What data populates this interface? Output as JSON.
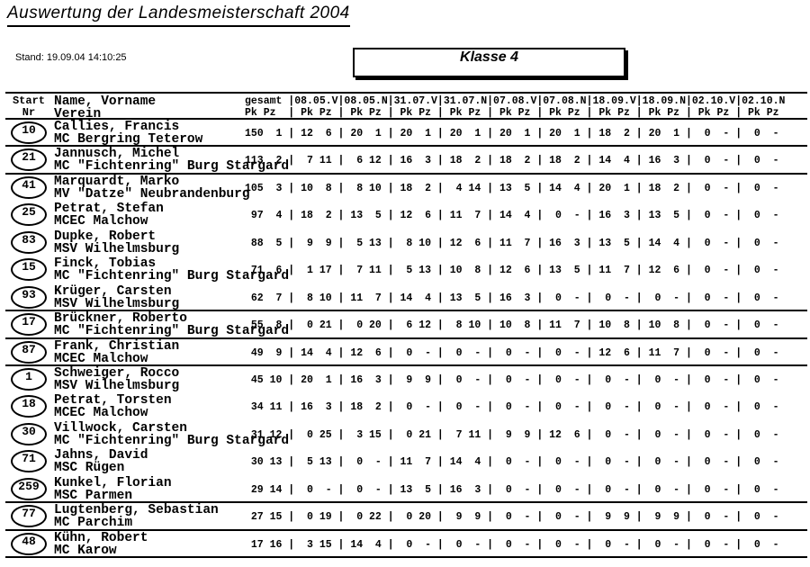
{
  "page": {
    "title": "Auswertung der Landesmeisterschaft 2004",
    "stand": "Stand: 19.09.04 14:10:25",
    "klasse": "Klasse 4"
  },
  "table": {
    "header": {
      "start_line1": "Start",
      "start_line2": "Nr",
      "name_line1": "Name, Vorname",
      "name_line2": "Verein",
      "total_label": "gesamt",
      "sub_label": "Pk Pz",
      "dates": [
        "08.05.V",
        "08.05.N",
        "31.07.V",
        "31.07.N",
        "07.08.V",
        "07.08.N",
        "18.09.V",
        "18.09.N",
        "02.10.V",
        "02.10.N"
      ]
    },
    "rows": [
      {
        "nr": "10",
        "name": "Callies, Francis",
        "verein": "MC Bergring Teterow",
        "total": [
          "150",
          "1"
        ],
        "results": [
          [
            "12",
            "6"
          ],
          [
            "20",
            "1"
          ],
          [
            "20",
            "1"
          ],
          [
            "20",
            "1"
          ],
          [
            "20",
            "1"
          ],
          [
            "20",
            "1"
          ],
          [
            "18",
            "2"
          ],
          [
            "20",
            "1"
          ],
          [
            "0",
            "-"
          ],
          [
            "0",
            "-"
          ]
        ],
        "rule_below": true
      },
      {
        "nr": "21",
        "name": "Jannusch, Michel",
        "verein": "MC \"Fichtenring\" Burg Stargard",
        "total": [
          "113",
          "2"
        ],
        "results": [
          [
            "7",
            "11"
          ],
          [
            "6",
            "12"
          ],
          [
            "16",
            "3"
          ],
          [
            "18",
            "2"
          ],
          [
            "18",
            "2"
          ],
          [
            "18",
            "2"
          ],
          [
            "14",
            "4"
          ],
          [
            "16",
            "3"
          ],
          [
            "0",
            "-"
          ],
          [
            "0",
            "-"
          ]
        ],
        "rule_below": true
      },
      {
        "nr": "41",
        "name": "Marquardt, Marko",
        "verein": "MV \"Datze\" Neubrandenburg",
        "total": [
          "105",
          "3"
        ],
        "results": [
          [
            "10",
            "8"
          ],
          [
            "8",
            "10"
          ],
          [
            "18",
            "2"
          ],
          [
            "4",
            "14"
          ],
          [
            "13",
            "5"
          ],
          [
            "14",
            "4"
          ],
          [
            "20",
            "1"
          ],
          [
            "18",
            "2"
          ],
          [
            "0",
            "-"
          ],
          [
            "0",
            "-"
          ]
        ],
        "rule_below": false
      },
      {
        "nr": "25",
        "name": "Petrat, Stefan",
        "verein": "MCEC Malchow",
        "total": [
          "97",
          "4"
        ],
        "results": [
          [
            "18",
            "2"
          ],
          [
            "13",
            "5"
          ],
          [
            "12",
            "6"
          ],
          [
            "11",
            "7"
          ],
          [
            "14",
            "4"
          ],
          [
            "0",
            "-"
          ],
          [
            "16",
            "3"
          ],
          [
            "13",
            "5"
          ],
          [
            "0",
            "-"
          ],
          [
            "0",
            "-"
          ]
        ],
        "rule_below": false
      },
      {
        "nr": "83",
        "name": "Dupke, Robert",
        "verein": "MSV Wilhelmsburg",
        "total": [
          "88",
          "5"
        ],
        "results": [
          [
            "9",
            "9"
          ],
          [
            "5",
            "13"
          ],
          [
            "8",
            "10"
          ],
          [
            "12",
            "6"
          ],
          [
            "11",
            "7"
          ],
          [
            "16",
            "3"
          ],
          [
            "13",
            "5"
          ],
          [
            "14",
            "4"
          ],
          [
            "0",
            "-"
          ],
          [
            "0",
            "-"
          ]
        ],
        "rule_below": false
      },
      {
        "nr": "15",
        "name": "Finck, Tobias",
        "verein": "MC \"Fichtenring\" Burg Stargard",
        "total": [
          "71",
          "6"
        ],
        "results": [
          [
            "1",
            "17"
          ],
          [
            "7",
            "11"
          ],
          [
            "5",
            "13"
          ],
          [
            "10",
            "8"
          ],
          [
            "12",
            "6"
          ],
          [
            "13",
            "5"
          ],
          [
            "11",
            "7"
          ],
          [
            "12",
            "6"
          ],
          [
            "0",
            "-"
          ],
          [
            "0",
            "-"
          ]
        ],
        "rule_below": false
      },
      {
        "nr": "93",
        "name": "Krüger, Carsten",
        "verein": "MSV Wilhelmsburg",
        "total": [
          "62",
          "7"
        ],
        "results": [
          [
            "8",
            "10"
          ],
          [
            "11",
            "7"
          ],
          [
            "14",
            "4"
          ],
          [
            "13",
            "5"
          ],
          [
            "16",
            "3"
          ],
          [
            "0",
            "-"
          ],
          [
            "0",
            "-"
          ],
          [
            "0",
            "-"
          ],
          [
            "0",
            "-"
          ],
          [
            "0",
            "-"
          ]
        ],
        "rule_below": true
      },
      {
        "nr": "17",
        "name": "Brückner, Roberto",
        "verein": "MC \"Fichtenring\" Burg Stargard",
        "total": [
          "55",
          "8"
        ],
        "results": [
          [
            "0",
            "21"
          ],
          [
            "0",
            "20"
          ],
          [
            "6",
            "12"
          ],
          [
            "8",
            "10"
          ],
          [
            "10",
            "8"
          ],
          [
            "11",
            "7"
          ],
          [
            "10",
            "8"
          ],
          [
            "10",
            "8"
          ],
          [
            "0",
            "-"
          ],
          [
            "0",
            "-"
          ]
        ],
        "rule_below": true
      },
      {
        "nr": "87",
        "name": "Frank, Christian",
        "verein": "MCEC Malchow",
        "total": [
          "49",
          "9"
        ],
        "results": [
          [
            "14",
            "4"
          ],
          [
            "12",
            "6"
          ],
          [
            "0",
            "-"
          ],
          [
            "0",
            "-"
          ],
          [
            "0",
            "-"
          ],
          [
            "0",
            "-"
          ],
          [
            "12",
            "6"
          ],
          [
            "11",
            "7"
          ],
          [
            "0",
            "-"
          ],
          [
            "0",
            "-"
          ]
        ],
        "rule_below": true
      },
      {
        "nr": "1",
        "name": "Schweiger, Rocco",
        "verein": "MSV Wilhelmsburg",
        "total": [
          "45",
          "10"
        ],
        "results": [
          [
            "20",
            "1"
          ],
          [
            "16",
            "3"
          ],
          [
            "9",
            "9"
          ],
          [
            "0",
            "-"
          ],
          [
            "0",
            "-"
          ],
          [
            "0",
            "-"
          ],
          [
            "0",
            "-"
          ],
          [
            "0",
            "-"
          ],
          [
            "0",
            "-"
          ],
          [
            "0",
            "-"
          ]
        ],
        "rule_below": false
      },
      {
        "nr": "18",
        "name": "Petrat, Torsten",
        "verein": "MCEC Malchow",
        "total": [
          "34",
          "11"
        ],
        "results": [
          [
            "16",
            "3"
          ],
          [
            "18",
            "2"
          ],
          [
            "0",
            "-"
          ],
          [
            "0",
            "-"
          ],
          [
            "0",
            "-"
          ],
          [
            "0",
            "-"
          ],
          [
            "0",
            "-"
          ],
          [
            "0",
            "-"
          ],
          [
            "0",
            "-"
          ],
          [
            "0",
            "-"
          ]
        ],
        "rule_below": false
      },
      {
        "nr": "30",
        "name": "Villwock, Carsten",
        "verein": "MC \"Fichtenring\" Burg Stargard",
        "total": [
          "31",
          "12"
        ],
        "results": [
          [
            "0",
            "25"
          ],
          [
            "3",
            "15"
          ],
          [
            "0",
            "21"
          ],
          [
            "7",
            "11"
          ],
          [
            "9",
            "9"
          ],
          [
            "12",
            "6"
          ],
          [
            "0",
            "-"
          ],
          [
            "0",
            "-"
          ],
          [
            "0",
            "-"
          ],
          [
            "0",
            "-"
          ]
        ],
        "rule_below": false
      },
      {
        "nr": "71",
        "name": "Jahns, David",
        "verein": "MSC Rügen",
        "total": [
          "30",
          "13"
        ],
        "results": [
          [
            "5",
            "13"
          ],
          [
            "0",
            "-"
          ],
          [
            "11",
            "7"
          ],
          [
            "14",
            "4"
          ],
          [
            "0",
            "-"
          ],
          [
            "0",
            "-"
          ],
          [
            "0",
            "-"
          ],
          [
            "0",
            "-"
          ],
          [
            "0",
            "-"
          ],
          [
            "0",
            "-"
          ]
        ],
        "rule_below": false
      },
      {
        "nr": "259",
        "name": "Kunkel, Florian",
        "verein": "MSC Parmen",
        "total": [
          "29",
          "14"
        ],
        "results": [
          [
            "0",
            "-"
          ],
          [
            "0",
            "-"
          ],
          [
            "13",
            "5"
          ],
          [
            "16",
            "3"
          ],
          [
            "0",
            "-"
          ],
          [
            "0",
            "-"
          ],
          [
            "0",
            "-"
          ],
          [
            "0",
            "-"
          ],
          [
            "0",
            "-"
          ],
          [
            "0",
            "-"
          ]
        ],
        "rule_below": true
      },
      {
        "nr": "77",
        "name": "Lugtenberg, Sebastian",
        "verein": "MC Parchim",
        "total": [
          "27",
          "15"
        ],
        "results": [
          [
            "0",
            "19"
          ],
          [
            "0",
            "22"
          ],
          [
            "0",
            "20"
          ],
          [
            "9",
            "9"
          ],
          [
            "0",
            "-"
          ],
          [
            "0",
            "-"
          ],
          [
            "9",
            "9"
          ],
          [
            "9",
            "9"
          ],
          [
            "0",
            "-"
          ],
          [
            "0",
            "-"
          ]
        ],
        "rule_below": true
      },
      {
        "nr": "48",
        "name": "Kühn, Robert",
        "verein": "MC Karow",
        "total": [
          "17",
          "16"
        ],
        "results": [
          [
            "3",
            "15"
          ],
          [
            "14",
            "4"
          ],
          [
            "0",
            "-"
          ],
          [
            "0",
            "-"
          ],
          [
            "0",
            "-"
          ],
          [
            "0",
            "-"
          ],
          [
            "0",
            "-"
          ],
          [
            "0",
            "-"
          ],
          [
            "0",
            "-"
          ],
          [
            "0",
            "-"
          ]
        ],
        "rule_below": true
      }
    ]
  }
}
